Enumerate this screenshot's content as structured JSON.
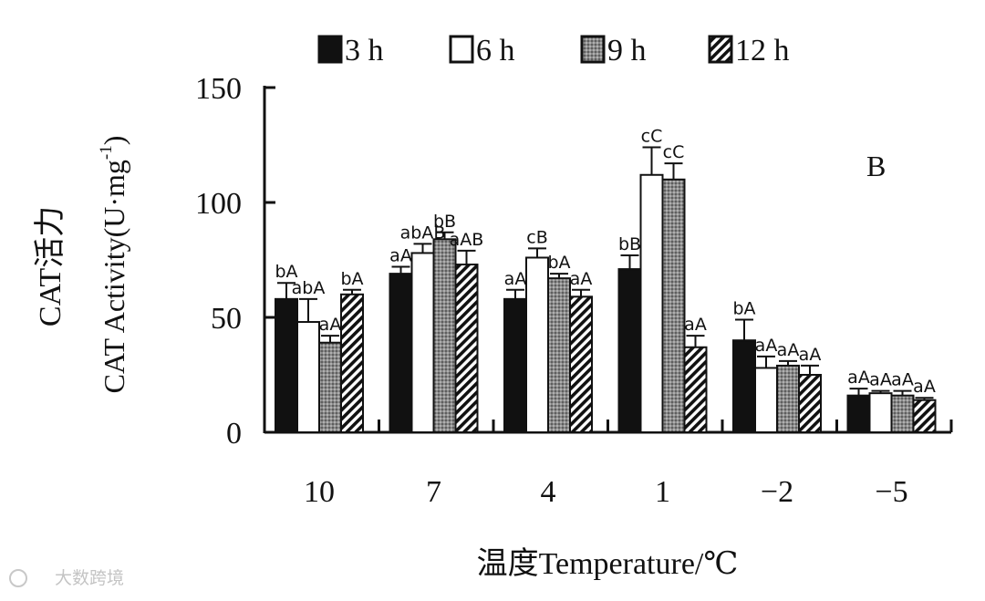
{
  "chart_data": {
    "type": "bar",
    "panel_label": "B",
    "legend_placement": "top",
    "ylabel_cn": "CAT活力",
    "ylabel_en": "CAT Activity(U·mg",
    "ylabel_sup": "-1",
    "ylabel_close": ")",
    "xlabel": "温度Temperature/℃",
    "ylim": [
      0,
      150
    ],
    "yticks": [
      "0",
      "50",
      "100",
      "150"
    ],
    "categories": [
      "10",
      "7",
      "4",
      "1",
      "−2",
      "−5"
    ],
    "series": [
      {
        "name": "3 h",
        "values": [
          58,
          69,
          58,
          71,
          40,
          16
        ],
        "errors": [
          7,
          3,
          4,
          6,
          9,
          3
        ],
        "letters": [
          "bA",
          "aA",
          "aA",
          "bB",
          "bA",
          "aA"
        ]
      },
      {
        "name": "6 h",
        "values": [
          48,
          78,
          76,
          112,
          28,
          17
        ],
        "errors": [
          10,
          4,
          4,
          12,
          5,
          1
        ],
        "letters": [
          "abA",
          "abAB",
          "cB",
          "cC",
          "aA",
          "aA"
        ]
      },
      {
        "name": "9 h",
        "values": [
          39,
          84,
          67,
          110,
          29,
          16
        ],
        "errors": [
          3,
          3,
          2,
          7,
          2,
          2
        ],
        "letters": [
          "aA",
          "bB",
          "bA",
          "cC",
          "aA",
          "aA"
        ]
      },
      {
        "name": "12 h",
        "values": [
          60,
          73,
          59,
          37,
          25,
          14
        ],
        "errors": [
          2,
          6,
          3,
          5,
          4,
          1
        ],
        "letters": [
          "bA",
          "aAB",
          "aA",
          "aA",
          "aA",
          "aA"
        ]
      }
    ],
    "colors": {
      "3 h": "#111111",
      "6 h": "#ffffff",
      "9 h": "#7a7a7a",
      "12 h": "hatch"
    }
  },
  "watermark": "大数跨境"
}
